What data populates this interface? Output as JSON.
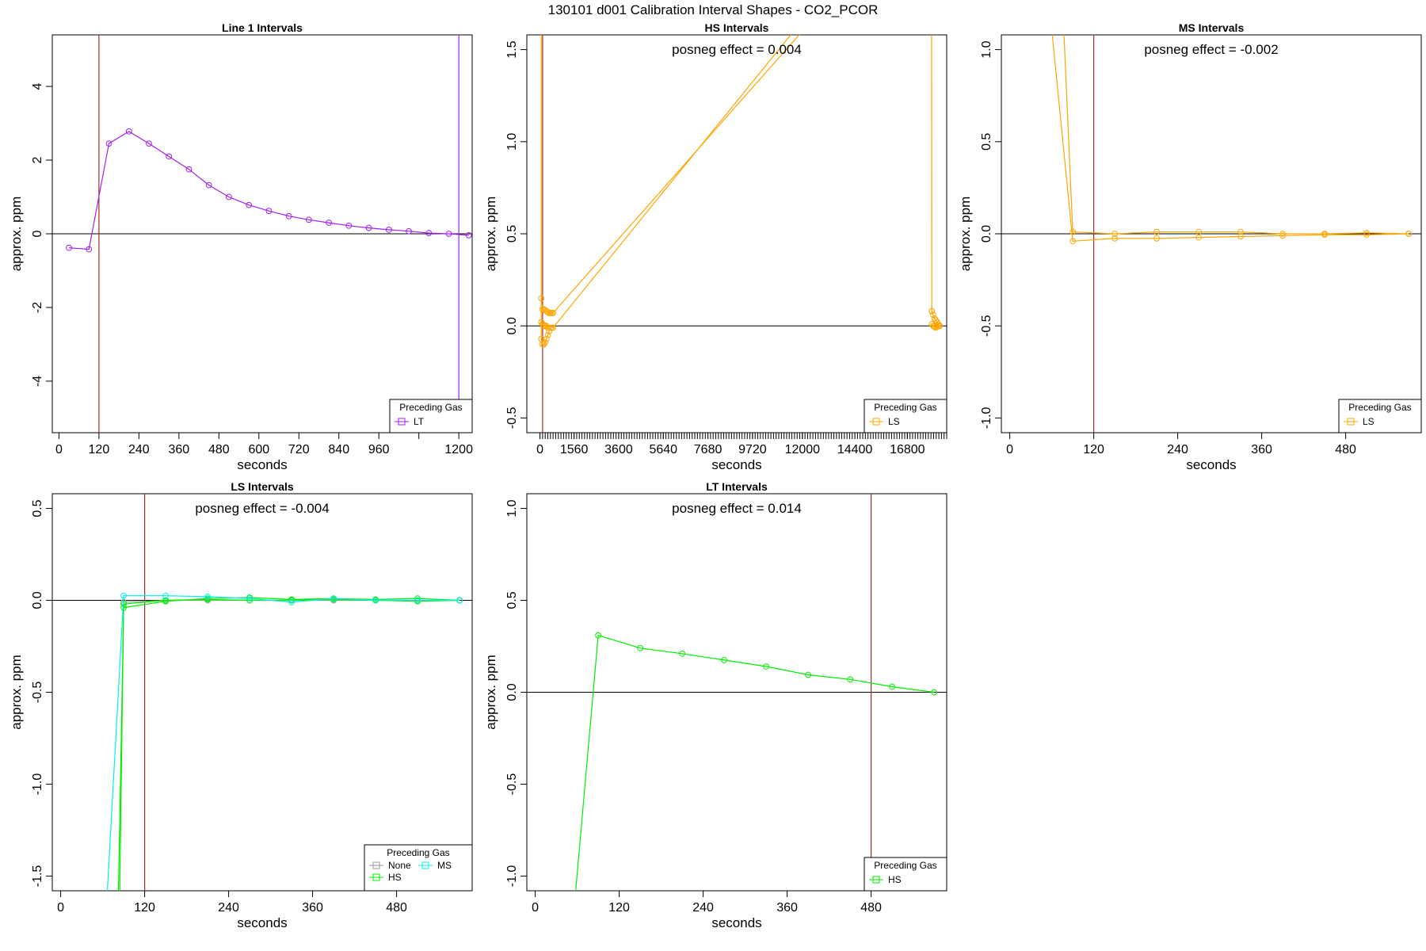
{
  "title": "130101  d001   Calibration Interval Shapes - CO2_PCOR",
  "chart_data": [
    {
      "type": "line",
      "title": "Line 1 Intervals",
      "annotation": "",
      "xlabel": "seconds",
      "ylabel": "approx. ppm",
      "xlim": [
        -20,
        1240
      ],
      "ylim": [
        -5.4,
        5.4
      ],
      "xticks": [
        0,
        120,
        240,
        360,
        480,
        600,
        720,
        840,
        960,
        1200
      ],
      "xtick_labels": [
        "0",
        "120",
        "240",
        "360",
        "480",
        "600",
        "720",
        "840",
        "960",
        "1200"
      ],
      "xticks_minor": [
        1080
      ],
      "yticks": [
        -4,
        -2,
        0,
        2,
        4
      ],
      "ytick_labels": [
        "-4",
        "-2",
        "0",
        "2",
        "4"
      ],
      "vlines": [
        {
          "x": 120,
          "color": "#a52a2a"
        },
        {
          "x": 1200,
          "color": "#a020f0"
        }
      ],
      "hline": 0,
      "legend": {
        "title": "Preceding Gas",
        "entries": [
          {
            "name": "LT",
            "color": "#a020f0"
          }
        ],
        "position": "bottom-right"
      },
      "series": [
        {
          "name": "LT",
          "color": "#a020f0",
          "segments": [
            {
              "x": [
                30,
                90,
                150,
                210,
                270,
                330,
                390,
                450,
                510,
                570,
                630,
                690,
                750,
                810,
                870,
                930,
                990,
                1050,
                1110,
                1170,
                1230
              ],
              "y": [
                -0.38,
                -0.42,
                2.45,
                2.78,
                2.45,
                2.1,
                1.75,
                1.32,
                1.0,
                0.78,
                0.62,
                0.48,
                0.38,
                0.3,
                0.22,
                0.16,
                0.11,
                0.07,
                0.02,
                0.0,
                -0.04
              ]
            }
          ]
        }
      ]
    },
    {
      "type": "line",
      "title": "HS Intervals",
      "annotation": "posneg effect = 0.004",
      "xlabel": "seconds",
      "ylabel": "approx. ppm",
      "xlim": [
        -600,
        18600
      ],
      "ylim": [
        -0.58,
        1.58
      ],
      "xticks": [
        0,
        1560,
        3600,
        5640,
        7680,
        9720,
        12000,
        14400,
        16800
      ],
      "xtick_labels": [
        "0",
        "1560",
        "3600",
        "5640",
        "7680",
        "9720",
        "12000",
        "14400",
        "16800"
      ],
      "xticks_minor_step": 120,
      "yticks": [
        -0.5,
        0.0,
        0.5,
        1.0,
        1.5
      ],
      "ytick_labels": [
        "-0.5",
        "0.0",
        "0.5",
        "1.0",
        "1.5"
      ],
      "vlines": [
        {
          "x": 120,
          "color": "#a52a2a"
        }
      ],
      "hline": 0,
      "legend": {
        "title": "Preceding Gas",
        "entries": [
          {
            "name": "LS",
            "color": "#ffa500"
          }
        ],
        "position": "bottom-right"
      },
      "series": [
        {
          "name": "LS",
          "color": "#ffa500",
          "segments": [
            {
              "x": [
                60,
                60
              ],
              "y": [
                -0.07,
                3.0
              ]
            },
            {
              "x": [
                60,
                120,
                180,
                240,
                300,
                360,
                420,
                480,
                540,
                600,
                12000
              ],
              "y": [
                0.15,
                0.09,
                0.09,
                0.085,
                0.08,
                0.075,
                0.07,
                0.07,
                0.07,
                0.07,
                1.6
              ]
            },
            {
              "x": [
                60,
                120,
                180,
                240,
                300,
                360,
                420,
                480,
                540,
                600,
                11600
              ],
              "y": [
                -0.07,
                -0.1,
                -0.1,
                -0.09,
                -0.07,
                -0.05,
                -0.03,
                -0.01,
                -0.01,
                -0.01,
                1.6
              ]
            },
            {
              "x": [
                60,
                120,
                180,
                240,
                300,
                360
              ],
              "y": [
                0.02,
                0.01,
                0.0,
                0.0,
                0.0,
                -0.01
              ]
            },
            {
              "x": [
                17900,
                17920
              ],
              "y": [
                3.0,
                0.08
              ]
            },
            {
              "x": [
                17920,
                17980,
                18040,
                18100,
                18160,
                18220,
                18280
              ],
              "y": [
                0.08,
                0.06,
                0.04,
                0.03,
                0.02,
                0.01,
                0.0
              ]
            },
            {
              "x": [
                17920,
                17980,
                18040,
                18100,
                18160,
                18220,
                18280
              ],
              "y": [
                0.01,
                0.0,
                -0.005,
                -0.01,
                -0.005,
                0.0,
                0.0
              ]
            }
          ]
        }
      ]
    },
    {
      "type": "line",
      "title": "MS Intervals",
      "annotation": "posneg effect = -0.002",
      "xlabel": "seconds",
      "ylabel": "approx. ppm",
      "xlim": [
        -12,
        588
      ],
      "ylim": [
        -1.08,
        1.08
      ],
      "xticks": [
        0,
        120,
        240,
        360,
        480
      ],
      "xtick_labels": [
        "0",
        "120",
        "240",
        "360",
        "480"
      ],
      "yticks": [
        -1.0,
        -0.5,
        0.0,
        0.5,
        1.0
      ],
      "ytick_labels": [
        "-1.0",
        "-0.5",
        "0.0",
        "0.5",
        "1.0"
      ],
      "vlines": [
        {
          "x": 120,
          "color": "#a52a2a"
        }
      ],
      "hline": 0,
      "legend": {
        "title": "Preceding Gas",
        "entries": [
          {
            "name": "LS",
            "color": "#ffa500"
          }
        ],
        "position": "bottom-right"
      },
      "series": [
        {
          "name": "LS",
          "color": "#ffa500",
          "segments": [
            {
              "x": [
                55,
                90,
                150,
                210,
                270,
                330,
                390,
                450,
                510,
                570
              ],
              "y": [
                1.3,
                -0.04,
                -0.025,
                -0.025,
                -0.02,
                -0.015,
                -0.01,
                -0.005,
                -0.005,
                0.0
              ]
            },
            {
              "x": [
                75,
                90,
                150,
                210,
                270,
                330,
                390,
                450,
                510,
                570
              ],
              "y": [
                1.3,
                0.01,
                0.0,
                0.01,
                0.01,
                0.01,
                0.0,
                0.0,
                0.005,
                0.0
              ]
            }
          ]
        }
      ]
    },
    {
      "type": "line",
      "title": "LS Intervals",
      "annotation": "posneg effect = -0.004",
      "xlabel": "seconds",
      "ylabel": "approx. ppm",
      "xlim": [
        -12,
        588
      ],
      "ylim": [
        -1.58,
        0.58
      ],
      "xticks": [
        0,
        120,
        240,
        360,
        480
      ],
      "xtick_labels": [
        "0",
        "120",
        "240",
        "360",
        "480"
      ],
      "yticks": [
        -1.5,
        -1.0,
        -0.5,
        0.0,
        0.5
      ],
      "ytick_labels": [
        "-1.5",
        "-1.0",
        "-0.5",
        "0.0",
        "0.5"
      ],
      "vlines": [
        {
          "x": 120,
          "color": "#a52a2a"
        }
      ],
      "hline": 0,
      "legend": {
        "title": "Preceding Gas",
        "entries": [
          {
            "name": "None",
            "color": "#999999"
          },
          {
            "name": "HS",
            "color": "#00ee00"
          },
          {
            "name": "MS",
            "color": "#00eeee"
          }
        ],
        "position": "bottom-right"
      },
      "series": [
        {
          "name": "None",
          "color": "#999999",
          "segments": [
            {
              "x": [
                90,
                150,
                210,
                270,
                330,
                390,
                450,
                510,
                570
              ],
              "y": [
                -0.01,
                0.0,
                0.0,
                0.0,
                0.0,
                0.0,
                0.0,
                0.0,
                0.0
              ]
            }
          ]
        },
        {
          "name": "HS",
          "color": "#00ee00",
          "segments": [
            {
              "x": [
                82,
                90,
                150,
                210,
                270,
                330,
                390,
                450,
                510,
                570
              ],
              "y": [
                -1.7,
                -0.04,
                -0.005,
                0.01,
                0.015,
                0.005,
                0.01,
                0.005,
                0.01,
                0.0
              ]
            },
            {
              "x": [
                84,
                90,
                150,
                210,
                270,
                330,
                390,
                450,
                510,
                570
              ],
              "y": [
                -1.7,
                -0.02,
                0.0,
                0.005,
                0.0,
                0.0,
                0.005,
                0.0,
                -0.005,
                0.0
              ]
            }
          ]
        },
        {
          "name": "MS",
          "color": "#00eeee",
          "segments": [
            {
              "x": [
                65,
                90,
                150,
                210,
                270,
                330,
                390,
                450,
                510,
                570
              ],
              "y": [
                -1.7,
                0.025,
                0.025,
                0.02,
                0.01,
                -0.01,
                0.01,
                0.0,
                0.0,
                0.0
              ]
            }
          ]
        }
      ]
    },
    {
      "type": "line",
      "title": "LT Intervals",
      "annotation": "posneg effect = 0.014",
      "xlabel": "seconds",
      "ylabel": "approx. ppm",
      "xlim": [
        -12,
        588
      ],
      "ylim": [
        -1.08,
        1.08
      ],
      "xticks": [
        0,
        120,
        240,
        360,
        480
      ],
      "xtick_labels": [
        "0",
        "120",
        "240",
        "360",
        "480"
      ],
      "yticks": [
        -1.0,
        -0.5,
        0.0,
        0.5,
        1.0
      ],
      "ytick_labels": [
        "-1.0",
        "-0.5",
        "0.0",
        "0.5",
        "1.0"
      ],
      "vlines": [
        {
          "x": 480,
          "color": "#a52a2a"
        }
      ],
      "hline": 0,
      "legend": {
        "title": "Preceding Gas",
        "entries": [
          {
            "name": "HS",
            "color": "#00ee00"
          }
        ],
        "position": "bottom-right"
      },
      "series": [
        {
          "name": "HS",
          "color": "#00ee00",
          "segments": [
            {
              "x": [
                55,
                90,
                150,
                210,
                270,
                330,
                390,
                450,
                510,
                570
              ],
              "y": [
                -1.2,
                0.31,
                0.24,
                0.21,
                0.175,
                0.14,
                0.095,
                0.07,
                0.03,
                0.0
              ]
            }
          ]
        }
      ]
    }
  ]
}
